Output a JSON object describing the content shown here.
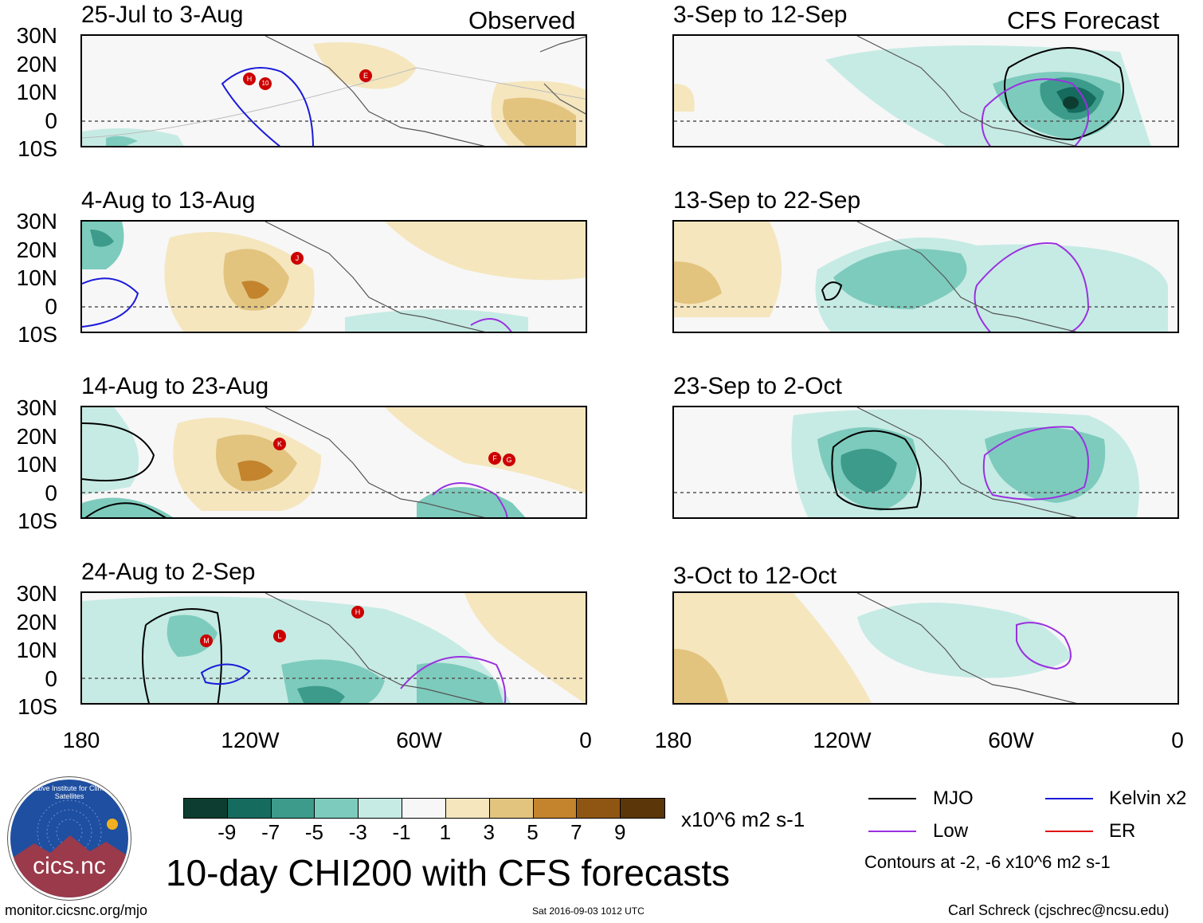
{
  "panels": [
    {
      "id": "p1",
      "title": "25-Jul to 3-Aug",
      "corner": "Observed",
      "storms": [
        "H",
        "10",
        "E"
      ]
    },
    {
      "id": "p2",
      "title": "4-Aug to 13-Aug",
      "corner": "",
      "storms": [
        "J"
      ]
    },
    {
      "id": "p3",
      "title": "14-Aug to 23-Aug",
      "corner": "",
      "storms": [
        "K",
        "F",
        "G"
      ]
    },
    {
      "id": "p4",
      "title": "24-Aug to 2-Sep",
      "corner": "",
      "storms": [
        "M",
        "L",
        "H"
      ]
    },
    {
      "id": "p5",
      "title": "3-Sep to 12-Sep",
      "corner": "CFS Forecast",
      "storms": []
    },
    {
      "id": "p6",
      "title": "13-Sep to 22-Sep",
      "corner": "",
      "storms": []
    },
    {
      "id": "p7",
      "title": "23-Sep to 2-Oct",
      "corner": "",
      "storms": []
    },
    {
      "id": "p8",
      "title": "3-Oct to 12-Oct",
      "corner": "",
      "storms": []
    }
  ],
  "axes": {
    "lat_labels": [
      "30N",
      "20N",
      "10N",
      "0",
      "10S"
    ],
    "lon_labels": [
      "180",
      "120W",
      "60W",
      "0"
    ]
  },
  "colorbar": {
    "colors": [
      "#0d3d30",
      "#146b5e",
      "#3d9b8b",
      "#7dcbbd",
      "#c6ebe4",
      "#f7f7f7",
      "#f5e6be",
      "#e2c47f",
      "#c3842d",
      "#8f5613",
      "#5a3608"
    ],
    "labels": [
      "-9",
      "-7",
      "-5",
      "-3",
      "-1",
      "1",
      "3",
      "5",
      "7",
      "9"
    ],
    "units": "x10^6 m2 s-1"
  },
  "legend": {
    "items": [
      {
        "label": "MJO",
        "color": "#000000"
      },
      {
        "label": "Kelvin x2",
        "color": "#1a1adb"
      },
      {
        "label": "Low",
        "color": "#9b30e0"
      },
      {
        "label": "ER",
        "color": "#e01010"
      }
    ],
    "contours_note": "Contours at -2, -6 x10^6 m2 s-1"
  },
  "logo": {
    "text": "cics.nc",
    "ring_text": "Cooperative Institute for Climate and Satellites"
  },
  "main_title": "10-day CHI200 with CFS forecasts",
  "footer": {
    "left": "monitor.cicsnc.org/mjo",
    "center": "Sat 2016-09-03 1012 UTC",
    "right": "Carl Schreck (cjschrec@ncsu.edu)"
  }
}
